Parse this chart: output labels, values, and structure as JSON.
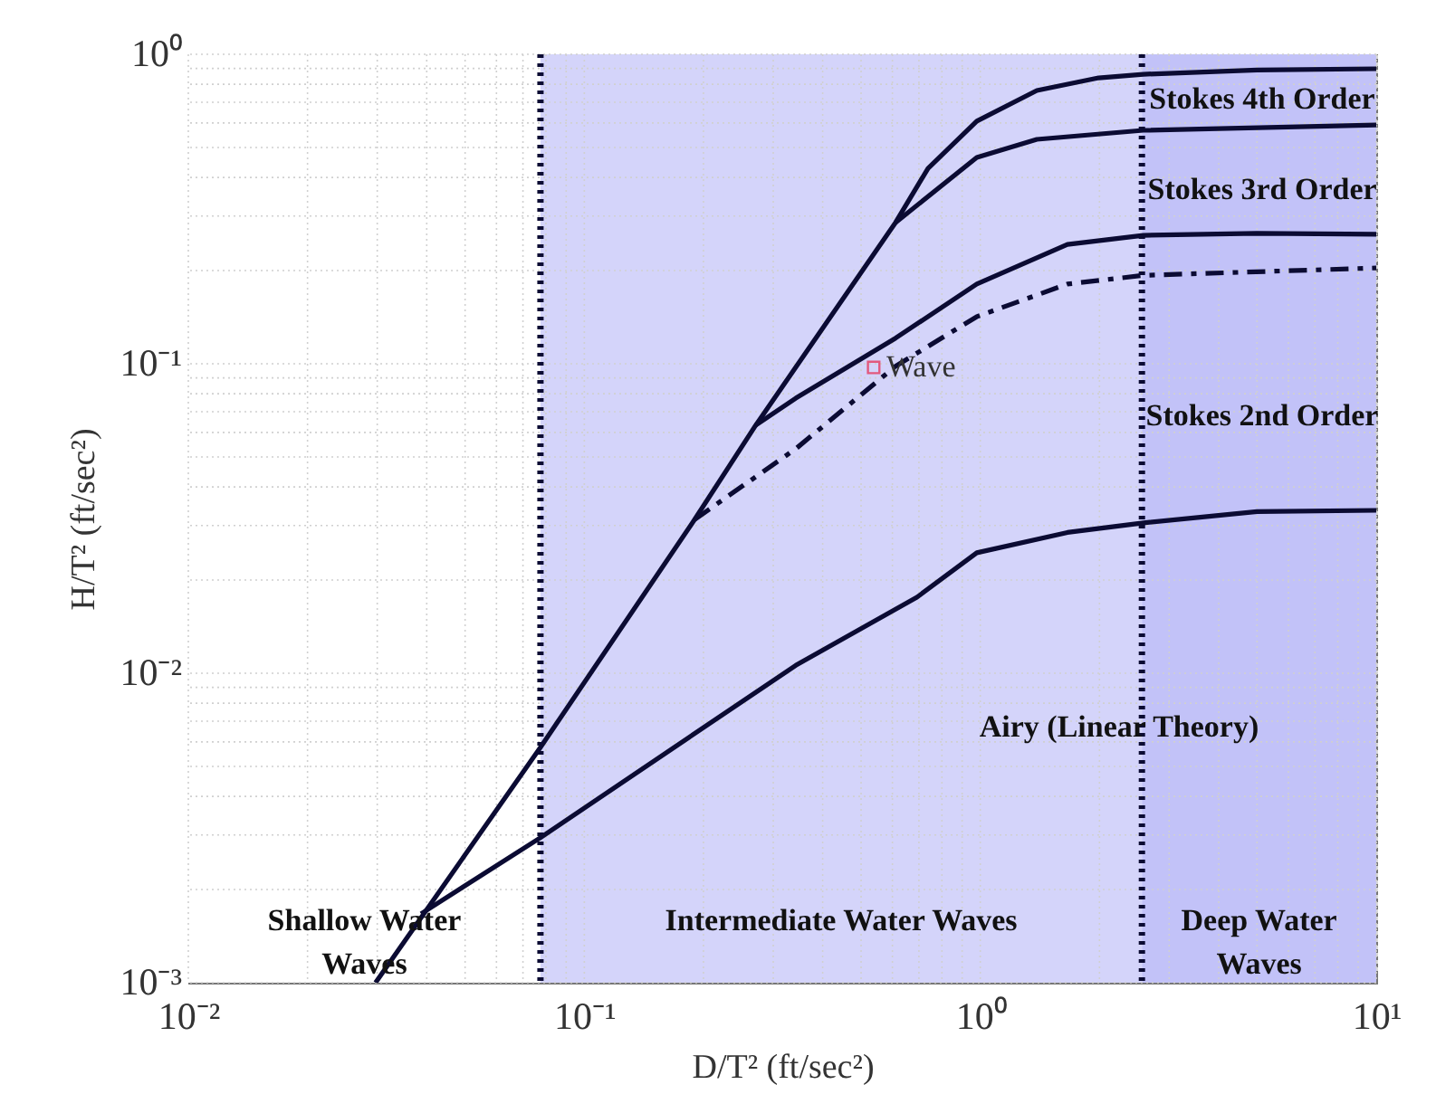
{
  "chart_data": {
    "type": "line",
    "xlabel": "D/T² (ft/sec²)",
    "ylabel": "H/T² (ft/sec²)",
    "log": "xy",
    "grid": true,
    "xlim": [
      0.01,
      10
    ],
    "ylim": [
      0.001,
      1
    ],
    "xticks": [
      {
        "value": 0.01,
        "label": "10⁻²"
      },
      {
        "value": 0.1,
        "label": "10⁻¹"
      },
      {
        "value": 1,
        "label": "10⁰"
      },
      {
        "value": 10,
        "label": "10¹"
      }
    ],
    "yticks": [
      {
        "value": 0.001,
        "label": "10⁻³"
      },
      {
        "value": 0.01,
        "label": "10⁻²"
      },
      {
        "value": 0.1,
        "label": "10⁻¹"
      },
      {
        "value": 1,
        "label": "10⁰"
      }
    ],
    "series": [
      {
        "color": "#0b0b33",
        "line_style": "solid",
        "x": [
          0.0297,
          0.0774,
          0.19,
          0.271,
          0.611,
          0.738,
          0.98,
          1.39,
          1.99,
          2.58,
          5,
          10
        ],
        "values": [
          0.001,
          0.00575,
          0.0314,
          0.0633,
          0.286,
          0.428,
          0.608,
          0.764,
          0.839,
          0.862,
          0.89,
          0.898
        ]
      },
      {
        "color": "#0b0b33",
        "line_style": "solid",
        "x": [
          0.611,
          0.98,
          1.39,
          2.58,
          10
        ],
        "values": [
          0.286,
          0.464,
          0.531,
          0.568,
          0.591
        ]
      },
      {
        "color": "#0b0b33",
        "line_style": "solid",
        "x": [
          0.271,
          0.342,
          0.611,
          0.98,
          1.66,
          2.58,
          5,
          10
        ],
        "values": [
          0.0633,
          0.0774,
          0.121,
          0.181,
          0.243,
          0.26,
          0.264,
          0.262
        ]
      },
      {
        "color": "#0b0b33",
        "line_style": "dashed",
        "x": [
          0.19,
          0.342,
          0.611,
          0.98,
          1.66,
          2.58,
          10
        ],
        "values": [
          0.0314,
          0.0531,
          0.0982,
          0.142,
          0.181,
          0.193,
          0.204
        ]
      },
      {
        "color": "#0b0b33",
        "line_style": "solid",
        "x": [
          0.0387,
          0.0774,
          0.342,
          0.692,
          0.98,
          1.66,
          2.58,
          5,
          10
        ],
        "values": [
          0.00167,
          0.00294,
          0.0106,
          0.0176,
          0.0245,
          0.0285,
          0.0306,
          0.0333,
          0.0336
        ]
      },
      {
        "type": "scatter",
        "name": "Wave",
        "color": "#e8264a",
        "marker": "square",
        "x": [
          0.538
        ],
        "values": [
          0.0973
        ]
      }
    ],
    "ref_lines": [
      {
        "axis": "x",
        "value": 0.0775,
        "line_style": "dotted"
      },
      {
        "axis": "x",
        "value": 2.56,
        "line_style": "dotted"
      }
    ],
    "bands": [
      {
        "axis": "x",
        "from": 0.01,
        "to": 0.0775,
        "label": "Shallow Water\nWaves",
        "color": "#ffffff"
      },
      {
        "axis": "x",
        "from": 0.0775,
        "to": 2.56,
        "label": "Intermediate Water Waves",
        "color": "#d4d4fa"
      },
      {
        "axis": "x",
        "from": 2.56,
        "to": 10,
        "label": "Deep Water\nWaves",
        "color": "#c2c2f8"
      }
    ],
    "annotations": [
      "Stokes 4th Order",
      "Stokes 3rd Order",
      "Stokes 2nd Order",
      "Airy (Linear Theory)"
    ]
  }
}
